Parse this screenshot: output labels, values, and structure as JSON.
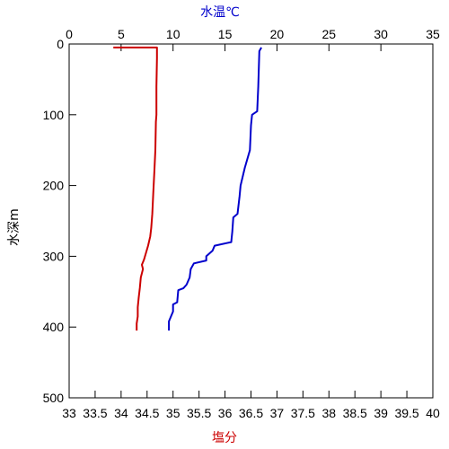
{
  "chart_data": {
    "type": "line",
    "title": "",
    "top_axis": {
      "label": "水温℃",
      "range": [
        0,
        35
      ],
      "ticks": [
        "0",
        "5",
        "10",
        "15",
        "20",
        "25",
        "30",
        "35"
      ]
    },
    "bottom_axis": {
      "label": "塩分",
      "range": [
        33,
        40
      ],
      "ticks": [
        "33",
        "33.5",
        "34",
        "34.5",
        "35",
        "35.5",
        "36",
        "36.5",
        "37",
        "37.5",
        "38",
        "38.5",
        "39",
        "39.5",
        "40"
      ]
    },
    "y_axis": {
      "label": "水深m",
      "range": [
        0,
        500
      ],
      "inverted": true,
      "ticks": [
        "0",
        "100",
        "200",
        "300",
        "400",
        "500"
      ]
    },
    "grid": false,
    "series": [
      {
        "axis": "bottom",
        "color": "#cc0000",
        "points": [
          [
            33.85,
            5
          ],
          [
            34.3,
            5
          ],
          [
            34.69,
            5
          ],
          [
            34.69,
            20
          ],
          [
            34.68,
            60
          ],
          [
            34.68,
            100
          ],
          [
            34.67,
            110
          ],
          [
            34.66,
            150
          ],
          [
            34.64,
            180
          ],
          [
            34.62,
            210
          ],
          [
            34.6,
            240
          ],
          [
            34.58,
            260
          ],
          [
            34.56,
            272
          ],
          [
            34.52,
            285
          ],
          [
            34.48,
            295
          ],
          [
            34.44,
            305
          ],
          [
            34.4,
            312
          ],
          [
            34.42,
            318
          ],
          [
            34.38,
            330
          ],
          [
            34.36,
            345
          ],
          [
            34.34,
            358
          ],
          [
            34.32,
            372
          ],
          [
            34.32,
            385
          ],
          [
            34.3,
            395
          ],
          [
            34.3,
            405
          ]
        ]
      },
      {
        "axis": "top",
        "color": "#0000cc",
        "points": [
          [
            18.5,
            5
          ],
          [
            18.3,
            10
          ],
          [
            18.2,
            60
          ],
          [
            18.1,
            95
          ],
          [
            17.6,
            100
          ],
          [
            17.5,
            115
          ],
          [
            17.4,
            150
          ],
          [
            16.9,
            175
          ],
          [
            16.5,
            200
          ],
          [
            16.4,
            215
          ],
          [
            16.2,
            240
          ],
          [
            15.8,
            245
          ],
          [
            15.7,
            265
          ],
          [
            15.6,
            280
          ],
          [
            14,
            285
          ],
          [
            13.8,
            292
          ],
          [
            13.2,
            300
          ],
          [
            13.2,
            306
          ],
          [
            12,
            310
          ],
          [
            11.7,
            318
          ],
          [
            11.6,
            330
          ],
          [
            11.3,
            340
          ],
          [
            11,
            345
          ],
          [
            10.5,
            348
          ],
          [
            10.4,
            365
          ],
          [
            10,
            368
          ],
          [
            10,
            378
          ],
          [
            9.8,
            385
          ],
          [
            9.6,
            392
          ],
          [
            9.6,
            405
          ]
        ]
      }
    ]
  }
}
